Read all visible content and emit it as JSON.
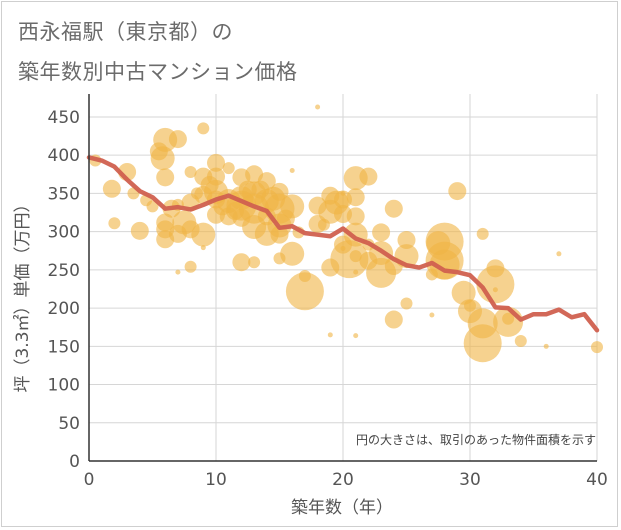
{
  "title_line1": "西永福駅（東京都）の",
  "title_line2": "築年数別中古マンション価格",
  "chart_data": {
    "type": "scatter",
    "xlabel": "築年数（年）",
    "ylabel": "坪（3.3㎡）単価（万円）",
    "xlim": [
      0,
      40
    ],
    "ylim": [
      0,
      480
    ],
    "xticks": [
      0,
      10,
      20,
      30,
      40
    ],
    "yticks": [
      0,
      50,
      100,
      150,
      200,
      250,
      300,
      350,
      400,
      450
    ],
    "grid": true,
    "note": "円の大きさは、取引のあった物件面積を示す",
    "colors": {
      "bubble": "#f0b445",
      "line": "#d0604f",
      "grid": "#d6d6d6",
      "axis": "#333333"
    },
    "line": {
      "name": "",
      "x": [
        0,
        1,
        2,
        3,
        4,
        5,
        6,
        7,
        8,
        9,
        10,
        11,
        12,
        13,
        14,
        15,
        16,
        17,
        18,
        19,
        20,
        21,
        22,
        23,
        24,
        25,
        26,
        27,
        28,
        29,
        30,
        31,
        32,
        33,
        34,
        35,
        36,
        37,
        38,
        39,
        40
      ],
      "y": [
        397,
        393,
        385,
        368,
        353,
        345,
        330,
        332,
        329,
        335,
        342,
        347,
        340,
        333,
        327,
        305,
        307,
        298,
        296,
        294,
        304,
        291,
        285,
        275,
        264,
        256,
        253,
        259,
        249,
        247,
        243,
        227,
        201,
        200,
        185,
        192,
        192,
        198,
        188,
        192,
        171
      ]
    },
    "points": [
      {
        "x": 0.5,
        "y": 393,
        "s": 2
      },
      {
        "x": 1.8,
        "y": 356,
        "s": 3
      },
      {
        "x": 2,
        "y": 311,
        "s": 2
      },
      {
        "x": 3,
        "y": 378,
        "s": 3
      },
      {
        "x": 3.5,
        "y": 350,
        "s": 2
      },
      {
        "x": 4,
        "y": 301,
        "s": 3
      },
      {
        "x": 4.5,
        "y": 341,
        "s": 2
      },
      {
        "x": 5,
        "y": 333,
        "s": 2
      },
      {
        "x": 5.5,
        "y": 405,
        "s": 3
      },
      {
        "x": 5.8,
        "y": 396,
        "s": 4
      },
      {
        "x": 6,
        "y": 420,
        "s": 4
      },
      {
        "x": 6,
        "y": 371,
        "s": 3
      },
      {
        "x": 6,
        "y": 312,
        "s": 3
      },
      {
        "x": 6,
        "y": 303,
        "s": 3
      },
      {
        "x": 6,
        "y": 290,
        "s": 3
      },
      {
        "x": 6.5,
        "y": 330,
        "s": 3
      },
      {
        "x": 7,
        "y": 421,
        "s": 3
      },
      {
        "x": 7,
        "y": 335,
        "s": 2
      },
      {
        "x": 7,
        "y": 297,
        "s": 3
      },
      {
        "x": 7,
        "y": 247,
        "s": 1
      },
      {
        "x": 7.5,
        "y": 312,
        "s": 4
      },
      {
        "x": 8,
        "y": 378,
        "s": 2
      },
      {
        "x": 8,
        "y": 338,
        "s": 3
      },
      {
        "x": 8,
        "y": 303,
        "s": 3
      },
      {
        "x": 8,
        "y": 254,
        "s": 2
      },
      {
        "x": 8.5,
        "y": 350,
        "s": 2
      },
      {
        "x": 9,
        "y": 435,
        "s": 2
      },
      {
        "x": 9,
        "y": 372,
        "s": 3
      },
      {
        "x": 9,
        "y": 348,
        "s": 3
      },
      {
        "x": 9,
        "y": 296,
        "s": 4
      },
      {
        "x": 9,
        "y": 279,
        "s": 1
      },
      {
        "x": 9.5,
        "y": 361,
        "s": 3
      },
      {
        "x": 10,
        "y": 390,
        "s": 3
      },
      {
        "x": 10,
        "y": 372,
        "s": 3
      },
      {
        "x": 10,
        "y": 352,
        "s": 4
      },
      {
        "x": 10,
        "y": 342,
        "s": 3
      },
      {
        "x": 10,
        "y": 322,
        "s": 3
      },
      {
        "x": 10.5,
        "y": 333,
        "s": 3
      },
      {
        "x": 11,
        "y": 383,
        "s": 2
      },
      {
        "x": 11,
        "y": 340,
        "s": 4
      },
      {
        "x": 11,
        "y": 320,
        "s": 3
      },
      {
        "x": 11.5,
        "y": 327,
        "s": 3
      },
      {
        "x": 12,
        "y": 371,
        "s": 3
      },
      {
        "x": 12,
        "y": 344,
        "s": 4
      },
      {
        "x": 12,
        "y": 334,
        "s": 5
      },
      {
        "x": 12,
        "y": 318,
        "s": 3
      },
      {
        "x": 12,
        "y": 260,
        "s": 3
      },
      {
        "x": 12.5,
        "y": 355,
        "s": 3
      },
      {
        "x": 13,
        "y": 375,
        "s": 3
      },
      {
        "x": 13,
        "y": 350,
        "s": 4
      },
      {
        "x": 13,
        "y": 330,
        "s": 5
      },
      {
        "x": 13,
        "y": 306,
        "s": 4
      },
      {
        "x": 13,
        "y": 260,
        "s": 2
      },
      {
        "x": 13.5,
        "y": 355,
        "s": 3
      },
      {
        "x": 14,
        "y": 366,
        "s": 3
      },
      {
        "x": 14,
        "y": 340,
        "s": 4
      },
      {
        "x": 14,
        "y": 320,
        "s": 3
      },
      {
        "x": 14,
        "y": 297,
        "s": 4
      },
      {
        "x": 14.5,
        "y": 343,
        "s": 4
      },
      {
        "x": 15,
        "y": 352,
        "s": 3
      },
      {
        "x": 15,
        "y": 330,
        "s": 5
      },
      {
        "x": 15,
        "y": 308,
        "s": 4
      },
      {
        "x": 15,
        "y": 296,
        "s": 3
      },
      {
        "x": 15,
        "y": 265,
        "s": 2
      },
      {
        "x": 15.5,
        "y": 317,
        "s": 3
      },
      {
        "x": 16,
        "y": 380,
        "s": 1
      },
      {
        "x": 16,
        "y": 333,
        "s": 4
      },
      {
        "x": 16,
        "y": 271,
        "s": 4
      },
      {
        "x": 16.5,
        "y": 299,
        "s": 2
      },
      {
        "x": 17,
        "y": 242,
        "s": 2
      },
      {
        "x": 17,
        "y": 222,
        "s": 6
      },
      {
        "x": 18,
        "y": 463,
        "s": 1
      },
      {
        "x": 18,
        "y": 334,
        "s": 3
      },
      {
        "x": 18,
        "y": 310,
        "s": 3
      },
      {
        "x": 18.5,
        "y": 309,
        "s": 2
      },
      {
        "x": 19,
        "y": 347,
        "s": 3
      },
      {
        "x": 19,
        "y": 326,
        "s": 4
      },
      {
        "x": 19,
        "y": 253,
        "s": 3
      },
      {
        "x": 19,
        "y": 165,
        "s": 1
      },
      {
        "x": 19.5,
        "y": 338,
        "s": 4
      },
      {
        "x": 20,
        "y": 350,
        "s": 1
      },
      {
        "x": 20,
        "y": 342,
        "s": 3
      },
      {
        "x": 20,
        "y": 323,
        "s": 3
      },
      {
        "x": 20,
        "y": 283,
        "s": 3
      },
      {
        "x": 20,
        "y": 278,
        "s": 1
      },
      {
        "x": 20.5,
        "y": 264,
        "s": 6
      },
      {
        "x": 21,
        "y": 370,
        "s": 4
      },
      {
        "x": 21,
        "y": 345,
        "s": 3
      },
      {
        "x": 21,
        "y": 320,
        "s": 3
      },
      {
        "x": 21,
        "y": 296,
        "s": 4
      },
      {
        "x": 21,
        "y": 268,
        "s": 2
      },
      {
        "x": 21,
        "y": 247,
        "s": 1
      },
      {
        "x": 21,
        "y": 164,
        "s": 1
      },
      {
        "x": 22,
        "y": 372,
        "s": 3
      },
      {
        "x": 22,
        "y": 283,
        "s": 2
      },
      {
        "x": 22,
        "y": 262,
        "s": 3
      },
      {
        "x": 23,
        "y": 299,
        "s": 3
      },
      {
        "x": 23,
        "y": 272,
        "s": 4
      },
      {
        "x": 23,
        "y": 246,
        "s": 5
      },
      {
        "x": 24,
        "y": 330,
        "s": 3
      },
      {
        "x": 24,
        "y": 255,
        "s": 3
      },
      {
        "x": 24,
        "y": 185,
        "s": 3
      },
      {
        "x": 25,
        "y": 289,
        "s": 3
      },
      {
        "x": 25,
        "y": 268,
        "s": 4
      },
      {
        "x": 25,
        "y": 206,
        "s": 2
      },
      {
        "x": 27,
        "y": 244,
        "s": 2
      },
      {
        "x": 27,
        "y": 191,
        "s": 1
      },
      {
        "x": 27.5,
        "y": 285,
        "s": 4
      },
      {
        "x": 28,
        "y": 287,
        "s": 6
      },
      {
        "x": 28,
        "y": 262,
        "s": 6
      },
      {
        "x": 28,
        "y": 257,
        "s": 5
      },
      {
        "x": 29,
        "y": 353,
        "s": 3
      },
      {
        "x": 29.5,
        "y": 220,
        "s": 4
      },
      {
        "x": 30,
        "y": 203,
        "s": 2
      },
      {
        "x": 30,
        "y": 196,
        "s": 4
      },
      {
        "x": 31,
        "y": 297,
        "s": 2
      },
      {
        "x": 31,
        "y": 180,
        "s": 5
      },
      {
        "x": 31,
        "y": 154,
        "s": 6
      },
      {
        "x": 32,
        "y": 252,
        "s": 3
      },
      {
        "x": 32,
        "y": 231,
        "s": 6
      },
      {
        "x": 32,
        "y": 224,
        "s": 1
      },
      {
        "x": 33,
        "y": 186,
        "s": 2
      },
      {
        "x": 33,
        "y": 182,
        "s": 5
      },
      {
        "x": 34,
        "y": 157,
        "s": 2
      },
      {
        "x": 36,
        "y": 150,
        "s": 1
      },
      {
        "x": 37,
        "y": 271,
        "s": 1
      },
      {
        "x": 40,
        "y": 149,
        "s": 2
      }
    ]
  }
}
